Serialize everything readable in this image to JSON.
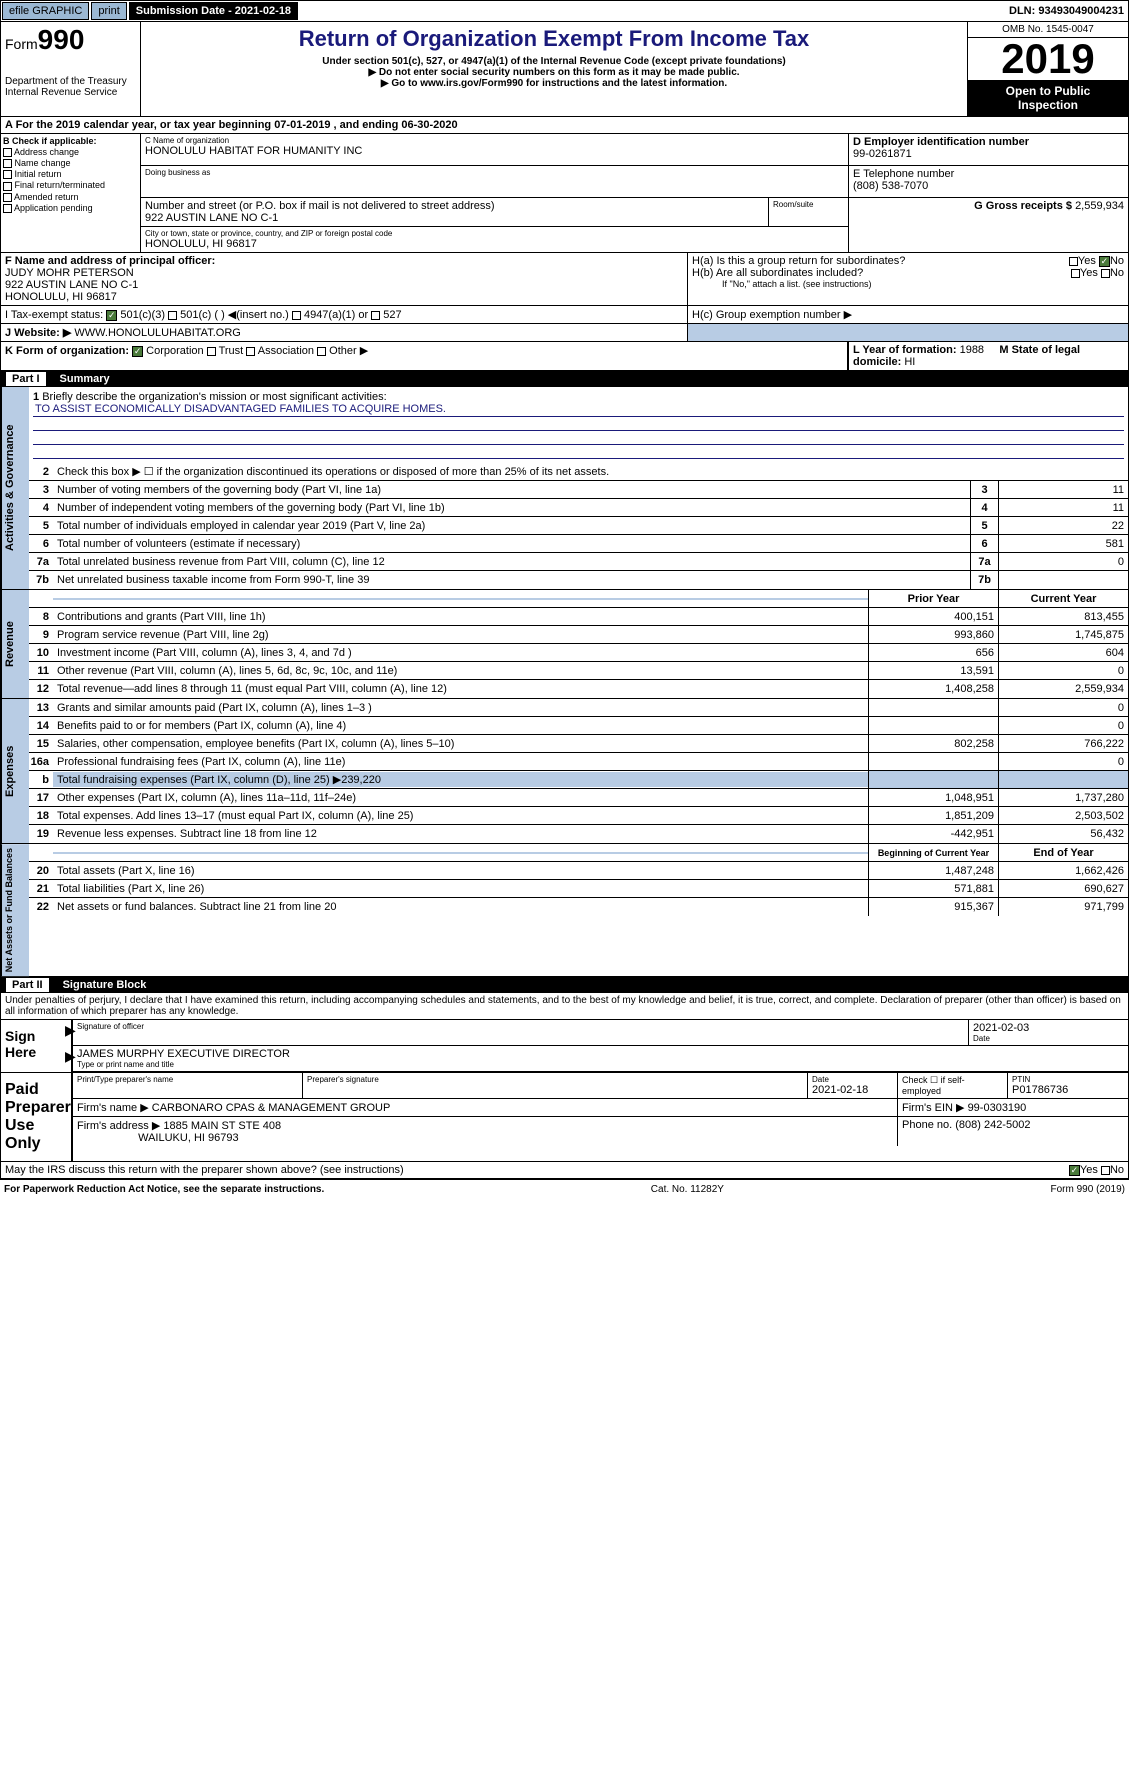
{
  "topbar": {
    "efile": "efile GRAPHIC",
    "print": "print",
    "sub_label": "Submission Date - 2021-02-18",
    "dln": "DLN: 93493049004231"
  },
  "header": {
    "form": "Form",
    "form_num": "990",
    "dept": "Department of the Treasury Internal Revenue Service",
    "title": "Return of Organization Exempt From Income Tax",
    "sub1": "Under section 501(c), 527, or 4947(a)(1) of the Internal Revenue Code (except private foundations)",
    "sub2": "▶ Do not enter social security numbers on this form as it may be made public.",
    "sub3": "▶ Go to www.irs.gov/Form990 for instructions and the latest information.",
    "omb": "OMB No. 1545-0047",
    "year": "2019",
    "inspect1": "Open to Public",
    "inspect2": "Inspection"
  },
  "period": "A For the 2019 calendar year, or tax year beginning 07-01-2019    , and ending 06-30-2020",
  "box_b": {
    "title": "B Check if applicable:",
    "items": [
      "Address change",
      "Name change",
      "Initial return",
      "Final return/terminated",
      "Amended return",
      "Application pending"
    ]
  },
  "box_c": {
    "name_lbl": "C Name of organization",
    "name": "HONOLULU HABITAT FOR HUMANITY INC",
    "dba_lbl": "Doing business as",
    "addr_lbl": "Number and street (or P.O. box if mail is not delivered to street address)",
    "addr": "922 AUSTIN LANE NO C-1",
    "room_lbl": "Room/suite",
    "city_lbl": "City or town, state or province, country, and ZIP or foreign postal code",
    "city": "HONOLULU, HI  96817"
  },
  "box_d": {
    "lbl": "D Employer identification number",
    "val": "99-0261871"
  },
  "box_e": {
    "lbl": "E Telephone number",
    "val": "(808) 538-7070"
  },
  "box_g": {
    "lbl": "G Gross receipts $",
    "val": "2,559,934"
  },
  "box_f": {
    "lbl": "F Name and address of principal officer:",
    "name": "JUDY MOHR PETERSON",
    "addr1": "922 AUSTIN LANE NO C-1",
    "addr2": "HONOLULU, HI  96817"
  },
  "box_h": {
    "ha": "H(a)  Is this a group return for subordinates?",
    "hb": "H(b)  Are all subordinates included?",
    "hb_note": "If \"No,\" attach a list. (see instructions)",
    "hc": "H(c)  Group exemption number ▶"
  },
  "box_i": {
    "lbl": "I    Tax-exempt status:",
    "opts": [
      "501(c)(3)",
      "501(c) (  ) ◀(insert no.)",
      "4947(a)(1) or",
      "527"
    ]
  },
  "box_j": {
    "lbl": "J    Website: ▶",
    "val": "WWW.HONOLULUHABITAT.ORG"
  },
  "box_k": "K Form of organization:",
  "box_k_opts": [
    "Corporation",
    "Trust",
    "Association",
    "Other ▶"
  ],
  "box_l": {
    "lbl": "L Year of formation:",
    "val": "1988"
  },
  "box_m": {
    "lbl": "M State of legal domicile:",
    "val": "HI"
  },
  "part1": {
    "label": "Part I",
    "title": "Summary"
  },
  "governance": {
    "label": "Activities & Governance",
    "q1": "Briefly describe the organization's mission or most significant activities:",
    "q1_ans": "TO ASSIST ECONOMICALLY DISADVANTAGED FAMILIES TO ACQUIRE HOMES.",
    "q2": "Check this box ▶ ☐ if the organization discontinued its operations or disposed of more than 25% of its net assets.",
    "rows": [
      {
        "n": "3",
        "t": "Number of voting members of the governing body (Part VI, line 1a)",
        "v": "11"
      },
      {
        "n": "4",
        "t": "Number of independent voting members of the governing body (Part VI, line 1b)",
        "v": "11"
      },
      {
        "n": "5",
        "t": "Total number of individuals employed in calendar year 2019 (Part V, line 2a)",
        "v": "22"
      },
      {
        "n": "6",
        "t": "Total number of volunteers (estimate if necessary)",
        "v": "581"
      },
      {
        "n": "7a",
        "t": "Total unrelated business revenue from Part VIII, column (C), line 12",
        "v": "0"
      },
      {
        "n": "7b",
        "t": "Net unrelated business taxable income from Form 990-T, line 39",
        "v": ""
      }
    ]
  },
  "revenue": {
    "label": "Revenue",
    "head_prior": "Prior Year",
    "head_current": "Current Year",
    "rows": [
      {
        "n": "8",
        "t": "Contributions and grants (Part VIII, line 1h)",
        "p": "400,151",
        "c": "813,455"
      },
      {
        "n": "9",
        "t": "Program service revenue (Part VIII, line 2g)",
        "p": "993,860",
        "c": "1,745,875"
      },
      {
        "n": "10",
        "t": "Investment income (Part VIII, column (A), lines 3, 4, and 7d )",
        "p": "656",
        "c": "604"
      },
      {
        "n": "11",
        "t": "Other revenue (Part VIII, column (A), lines 5, 6d, 8c, 9c, 10c, and 11e)",
        "p": "13,591",
        "c": "0"
      },
      {
        "n": "12",
        "t": "Total revenue—add lines 8 through 11 (must equal Part VIII, column (A), line 12)",
        "p": "1,408,258",
        "c": "2,559,934"
      }
    ]
  },
  "expenses": {
    "label": "Expenses",
    "rows": [
      {
        "n": "13",
        "t": "Grants and similar amounts paid (Part IX, column (A), lines 1–3 )",
        "p": "",
        "c": "0"
      },
      {
        "n": "14",
        "t": "Benefits paid to or for members (Part IX, column (A), line 4)",
        "p": "",
        "c": "0"
      },
      {
        "n": "15",
        "t": "Salaries, other compensation, employee benefits (Part IX, column (A), lines 5–10)",
        "p": "802,258",
        "c": "766,222"
      },
      {
        "n": "16a",
        "t": "Professional fundraising fees (Part IX, column (A), line 11e)",
        "p": "",
        "c": "0"
      },
      {
        "n": "b",
        "t": "Total fundraising expenses (Part IX, column (D), line 25) ▶239,220",
        "p": "",
        "c": "",
        "shaded": true
      },
      {
        "n": "17",
        "t": "Other expenses (Part IX, column (A), lines 11a–11d, 11f–24e)",
        "p": "1,048,951",
        "c": "1,737,280"
      },
      {
        "n": "18",
        "t": "Total expenses. Add lines 13–17 (must equal Part IX, column (A), line 25)",
        "p": "1,851,209",
        "c": "2,503,502"
      },
      {
        "n": "19",
        "t": "Revenue less expenses. Subtract line 18 from line 12",
        "p": "-442,951",
        "c": "56,432"
      }
    ]
  },
  "netassets": {
    "label": "Net Assets or Fund Balances",
    "head_begin": "Beginning of Current Year",
    "head_end": "End of Year",
    "rows": [
      {
        "n": "20",
        "t": "Total assets (Part X, line 16)",
        "p": "1,487,248",
        "c": "1,662,426"
      },
      {
        "n": "21",
        "t": "Total liabilities (Part X, line 26)",
        "p": "571,881",
        "c": "690,627"
      },
      {
        "n": "22",
        "t": "Net assets or fund balances. Subtract line 21 from line 20",
        "p": "915,367",
        "c": "971,799"
      }
    ]
  },
  "part2": {
    "label": "Part II",
    "title": "Signature Block"
  },
  "perjury": "Under penalties of perjury, I declare that I have examined this return, including accompanying schedules and statements, and to the best of my knowledge and belief, it is true, correct, and complete. Declaration of preparer (other than officer) is based on all information of which preparer has any knowledge.",
  "sign": {
    "label": "Sign Here",
    "sig_lbl": "Signature of officer",
    "date": "2021-02-03",
    "date_lbl": "Date",
    "name": "JAMES MURPHY EXECUTIVE DIRECTOR",
    "name_lbl": "Type or print name and title"
  },
  "preparer": {
    "label": "Paid Preparer Use Only",
    "col1": "Print/Type preparer's name",
    "col2": "Preparer's signature",
    "col3": "Date",
    "col3_val": "2021-02-18",
    "col4": "Check ☐ if self-employed",
    "col5": "PTIN",
    "col5_val": "P01786736",
    "firm_lbl": "Firm's name      ▶",
    "firm": "CARBONARO CPAS & MANAGEMENT GROUP",
    "ein_lbl": "Firm's EIN ▶",
    "ein": "99-0303190",
    "addr_lbl": "Firm's address ▶",
    "addr1": "1885 MAIN ST STE 408",
    "addr2": "WAILUKU, HI  96793",
    "phone_lbl": "Phone no.",
    "phone": "(808) 242-5002"
  },
  "discuss": "May the IRS discuss this return with the preparer shown above? (see instructions)",
  "footer": {
    "left": "For Paperwork Reduction Act Notice, see the separate instructions.",
    "mid": "Cat. No. 11282Y",
    "right": "Form 990 (2019)"
  }
}
